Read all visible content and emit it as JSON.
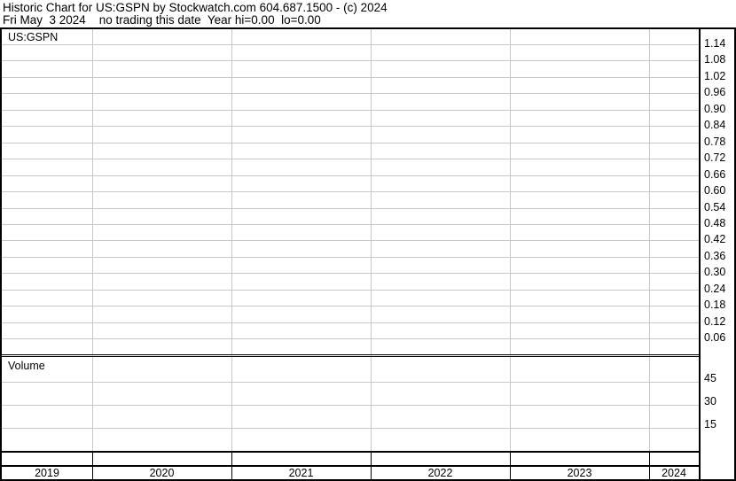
{
  "header": {
    "line1": "Historic Chart for US:GSPN by Stockwatch.com 604.687.1500 - (c) 2024",
    "line2": "Fri May  3 2024    no trading this date  Year hi=0.00  lo=0.00"
  },
  "chart_data": {
    "type": "line",
    "title": "US:GSPN",
    "series": [],
    "price_axis": {
      "ticks": [
        "1.14",
        "1.08",
        "1.02",
        "0.96",
        "0.90",
        "0.84",
        "0.78",
        "0.72",
        "0.66",
        "0.60",
        "0.54",
        "0.48",
        "0.42",
        "0.36",
        "0.30",
        "0.24",
        "0.18",
        "0.12",
        "0.06"
      ],
      "ylim": [
        0,
        1.18
      ]
    },
    "volume_panel": {
      "label": "Volume",
      "ticks": [
        "45",
        "30",
        "15"
      ],
      "values": []
    },
    "x_ticks": [
      "2019",
      "2020",
      "2021",
      "2022",
      "2023",
      "2024"
    ],
    "grid": true
  }
}
